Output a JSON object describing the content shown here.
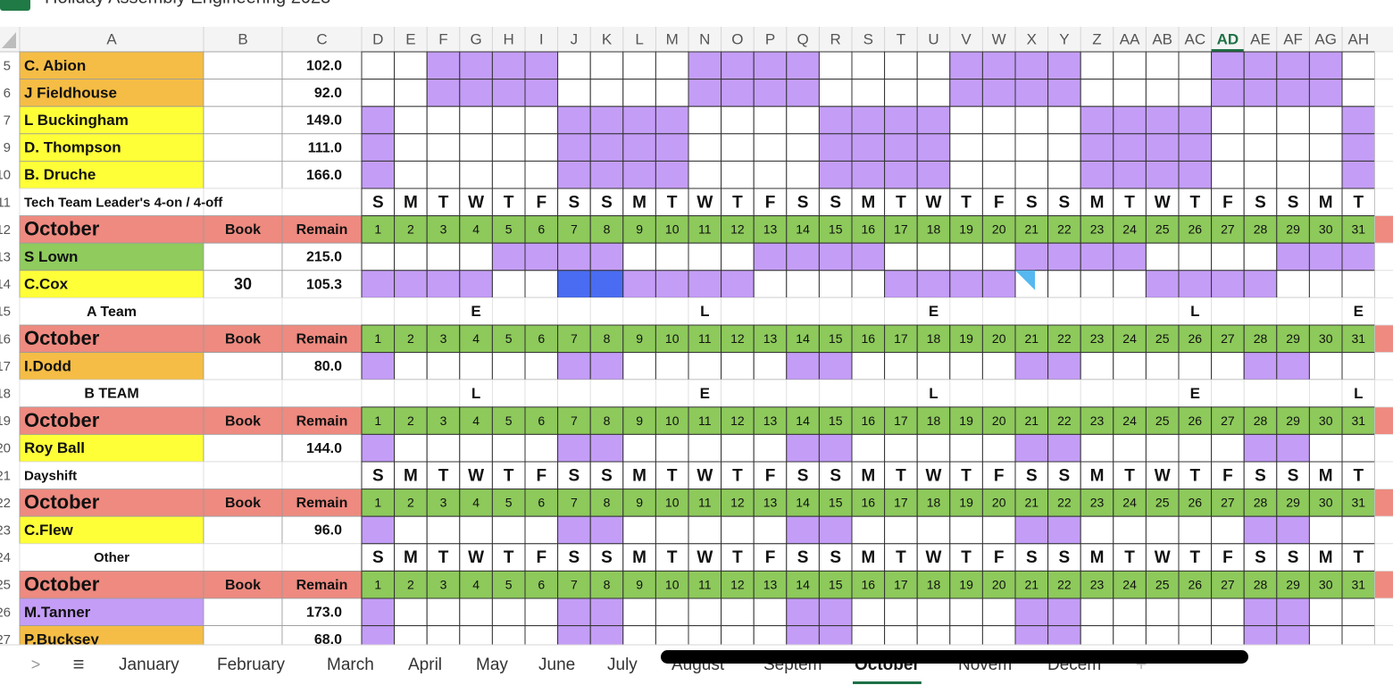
{
  "header": {
    "title": "Holiday Assembly Engineering 2023"
  },
  "columns": [
    "A",
    "B",
    "C",
    "D",
    "E",
    "F",
    "G",
    "H",
    "I",
    "J",
    "K",
    "L",
    "M",
    "N",
    "O",
    "P",
    "Q",
    "R",
    "S",
    "T",
    "U",
    "V",
    "W",
    "X",
    "Y",
    "Z",
    "AA",
    "AB",
    "AC",
    "AD",
    "AE",
    "AF",
    "AG",
    "AH"
  ],
  "selected_column": "AD",
  "rows": [
    {
      "row": 5,
      "a": "C. Abion",
      "c": "102.0"
    },
    {
      "row": 6,
      "a": "J Fieldhouse",
      "c": "92.0"
    },
    {
      "row": 7,
      "a": "L  Buckingham",
      "c": "149.0"
    },
    {
      "row": 9,
      "a": "D. Thompson",
      "c": "111.0"
    },
    {
      "row": 10,
      "a": "B. Druche",
      "c": "166.0"
    },
    {
      "row": 11,
      "a": "Tech Team Leader's  4-on / 4-off",
      "weekdays": [
        "S",
        "M",
        "T",
        "W",
        "T",
        "F",
        "S",
        "S",
        "M",
        "T",
        "W",
        "T",
        "F",
        "S",
        "S",
        "M",
        "T",
        "W",
        "T",
        "F",
        "S",
        "S",
        "M",
        "T",
        "W",
        "T",
        "F",
        "S",
        "S",
        "M",
        "T"
      ]
    },
    {
      "row": 12,
      "a": "October",
      "b": "Book",
      "c": "Remain",
      "days": [
        1,
        2,
        3,
        4,
        5,
        6,
        7,
        8,
        9,
        10,
        11,
        12,
        13,
        14,
        15,
        16,
        17,
        18,
        19,
        20,
        21,
        22,
        23,
        24,
        25,
        26,
        27,
        28,
        29,
        30,
        31
      ]
    },
    {
      "row": 13,
      "a": "S Lown",
      "c": "215.0"
    },
    {
      "row": 14,
      "a": "C.Cox",
      "b": "30",
      "c": "105.3"
    },
    {
      "row": 15,
      "a": "A Team",
      "marks": [
        null,
        null,
        null,
        "E",
        null,
        null,
        null,
        null,
        null,
        null,
        "L",
        null,
        null,
        null,
        null,
        null,
        null,
        "E",
        null,
        null,
        null,
        null,
        null,
        null,
        null,
        "L",
        null,
        null,
        null,
        null,
        "E"
      ]
    },
    {
      "row": 16,
      "a": "October",
      "b": "Book",
      "c": "Remain",
      "days": [
        1,
        2,
        3,
        4,
        5,
        6,
        7,
        8,
        9,
        10,
        11,
        12,
        13,
        14,
        15,
        16,
        17,
        18,
        19,
        20,
        21,
        22,
        23,
        24,
        25,
        26,
        27,
        28,
        29,
        30,
        31
      ]
    },
    {
      "row": 17,
      "a": "I.Dodd",
      "c": "80.0"
    },
    {
      "row": 18,
      "a": "B TEAM",
      "marks": [
        null,
        null,
        null,
        "L",
        null,
        null,
        null,
        null,
        null,
        null,
        "E",
        null,
        null,
        null,
        null,
        null,
        null,
        "L",
        null,
        null,
        null,
        null,
        null,
        null,
        null,
        "E",
        null,
        null,
        null,
        null,
        "L"
      ]
    },
    {
      "row": 19,
      "a": "October",
      "b": "Book",
      "c": "Remain",
      "days": [
        1,
        2,
        3,
        4,
        5,
        6,
        7,
        8,
        9,
        10,
        11,
        12,
        13,
        14,
        15,
        16,
        17,
        18,
        19,
        20,
        21,
        22,
        23,
        24,
        25,
        26,
        27,
        28,
        29,
        30,
        31
      ]
    },
    {
      "row": 20,
      "a": "Roy Ball",
      "c": "144.0"
    },
    {
      "row": 21,
      "a": "Dayshift",
      "weekdays": [
        "S",
        "M",
        "T",
        "W",
        "T",
        "F",
        "S",
        "S",
        "M",
        "T",
        "W",
        "T",
        "F",
        "S",
        "S",
        "M",
        "T",
        "W",
        "T",
        "F",
        "S",
        "S",
        "M",
        "T",
        "W",
        "T",
        "F",
        "S",
        "S",
        "M",
        "T"
      ]
    },
    {
      "row": 22,
      "a": "October",
      "b": "Book",
      "c": "Remain",
      "days": [
        1,
        2,
        3,
        4,
        5,
        6,
        7,
        8,
        9,
        10,
        11,
        12,
        13,
        14,
        15,
        16,
        17,
        18,
        19,
        20,
        21,
        22,
        23,
        24,
        25,
        26,
        27,
        28,
        29,
        30,
        31
      ]
    },
    {
      "row": 23,
      "a": "C.Flew",
      "c": "96.0"
    },
    {
      "row": 24,
      "a": "Other",
      "weekdays": [
        "S",
        "M",
        "T",
        "W",
        "T",
        "F",
        "S",
        "S",
        "M",
        "T",
        "W",
        "T",
        "F",
        "S",
        "S",
        "M",
        "T",
        "W",
        "T",
        "F",
        "S",
        "S",
        "M",
        "T",
        "W",
        "T",
        "F",
        "S",
        "S",
        "M",
        "T"
      ]
    },
    {
      "row": 25,
      "a": "October",
      "b": "Book",
      "c": "Remain",
      "days": [
        1,
        2,
        3,
        4,
        5,
        6,
        7,
        8,
        9,
        10,
        11,
        12,
        13,
        14,
        15,
        16,
        17,
        18,
        19,
        20,
        21,
        22,
        23,
        24,
        25,
        26,
        27,
        28,
        29,
        30,
        31
      ]
    },
    {
      "row": 26,
      "a": "M.Tanner",
      "c": "173.0"
    },
    {
      "row": 27,
      "a": "P.Bucksey",
      "c": "68.0"
    }
  ],
  "tab_bar": {
    "prev": ">",
    "menu": "≡",
    "add": "+",
    "tabs": [
      "January",
      "February",
      "March",
      "April",
      "May",
      "June",
      "July",
      "August",
      "Septem",
      "October",
      "Novem",
      "Decem"
    ],
    "active": "October"
  }
}
